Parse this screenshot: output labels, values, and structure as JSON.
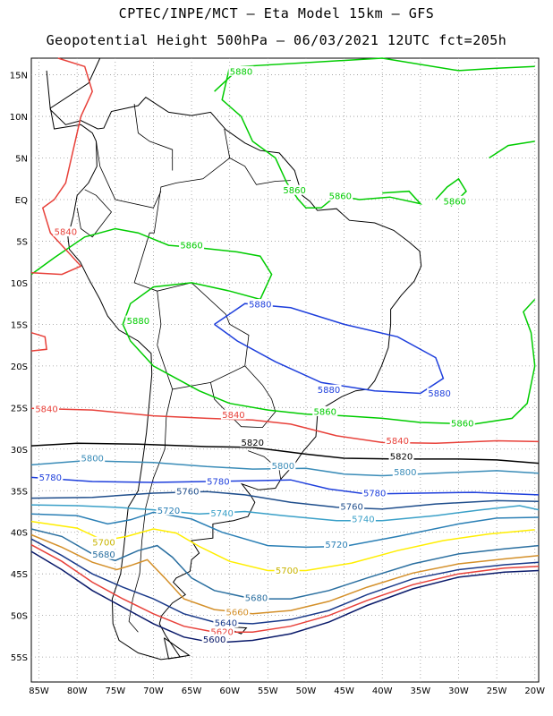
{
  "title_line1": "CPTEC/INPE/MCT —  Eta Model 15km — GFS",
  "title_line2": "Geopotential Height 500hPa — 06/03/2021 12UTC fct=205h",
  "map": {
    "lon_range": [
      -86,
      -19.5
    ],
    "lat_range": [
      -58,
      17
    ],
    "lat_labels": [
      "15N",
      "10N",
      "5N",
      "EQ",
      "5S",
      "10S",
      "15S",
      "20S",
      "25S",
      "30S",
      "35S",
      "40S",
      "45S",
      "50S",
      "55S"
    ],
    "lon_labels": [
      "85W",
      "80W",
      "75W",
      "70W",
      "65W",
      "60W",
      "55W",
      "50W",
      "45W",
      "40W",
      "35W",
      "30W",
      "25W",
      "20W"
    ],
    "coast_color": "#000000",
    "grid_color": "#9a9a9a"
  },
  "contours": [
    {
      "level": "5880",
      "color": "#00cc00"
    },
    {
      "level": "5880",
      "color": "#1e3fdc"
    },
    {
      "level": "5860",
      "color": "#00cc00"
    },
    {
      "level": "5840",
      "color": "#e8413a"
    },
    {
      "level": "5820",
      "color": "#000000"
    },
    {
      "level": "5800",
      "color": "#3a8cb8"
    },
    {
      "level": "5780",
      "color": "#1e3fdc"
    },
    {
      "level": "5760",
      "color": "#1f4e8c"
    },
    {
      "level": "5740",
      "color": "#3aa0c8"
    },
    {
      "level": "5720",
      "color": "#2a7fb5"
    },
    {
      "level": "5700",
      "color": "#ffee00"
    },
    {
      "level": "5680",
      "color": "#2a6fa0"
    },
    {
      "level": "5660",
      "color": "#d4902a"
    },
    {
      "level": "5640",
      "color": "#1a3a8a"
    },
    {
      "level": "5620",
      "color": "#e8413a"
    },
    {
      "level": "5600",
      "color": "#0a1a6a"
    }
  ],
  "labels": [
    {
      "text": "5880",
      "color": "#00cc00",
      "lon": -58.5,
      "lat": 15.3
    },
    {
      "text": "5860",
      "color": "#00cc00",
      "lon": -51.5,
      "lat": 1.0
    },
    {
      "text": "5860",
      "color": "#00cc00",
      "lon": -45.5,
      "lat": 0.3
    },
    {
      "text": "5860",
      "color": "#00cc00",
      "lon": -30.5,
      "lat": -0.3
    },
    {
      "text": "5860",
      "color": "#00cc00",
      "lon": -65.0,
      "lat": -5.6
    },
    {
      "text": "5880",
      "color": "#00cc00",
      "lon": -72.0,
      "lat": -14.7
    },
    {
      "text": "5860",
      "color": "#00cc00",
      "lon": -47.5,
      "lat": -25.6
    },
    {
      "text": "5860",
      "color": "#00cc00",
      "lon": -29.5,
      "lat": -27.0
    },
    {
      "text": "5840",
      "color": "#e8413a",
      "lon": -81.5,
      "lat": -4.0
    },
    {
      "text": "5880",
      "color": "#1e3fdc",
      "lon": -56.0,
      "lat": -12.7
    },
    {
      "text": "5880",
      "color": "#1e3fdc",
      "lon": -47.0,
      "lat": -23.0
    },
    {
      "text": "5880",
      "color": "#1e3fdc",
      "lon": -32.5,
      "lat": -23.4
    },
    {
      "text": "5840",
      "color": "#e8413a",
      "lon": -84.0,
      "lat": -25.3
    },
    {
      "text": "5840",
      "color": "#e8413a",
      "lon": -59.5,
      "lat": -26.0
    },
    {
      "text": "5840",
      "color": "#e8413a",
      "lon": -38.0,
      "lat": -29.1
    },
    {
      "text": "5820",
      "color": "#000000",
      "lon": -57.0,
      "lat": -29.3
    },
    {
      "text": "5820",
      "color": "#000000",
      "lon": -37.5,
      "lat": -31.0
    },
    {
      "text": "5800",
      "color": "#3a8cb8",
      "lon": -78.0,
      "lat": -31.2
    },
    {
      "text": "5800",
      "color": "#3a8cb8",
      "lon": -53.0,
      "lat": -32.1
    },
    {
      "text": "5800",
      "color": "#3a8cb8",
      "lon": -37.0,
      "lat": -32.9
    },
    {
      "text": "5780",
      "color": "#1e3fdc",
      "lon": -83.5,
      "lat": -33.5
    },
    {
      "text": "5780",
      "color": "#1e3fdc",
      "lon": -61.5,
      "lat": -34.0
    },
    {
      "text": "5760",
      "color": "#1f4e8c",
      "lon": -65.5,
      "lat": -35.2
    },
    {
      "text": "5780",
      "color": "#1e3fdc",
      "lon": -41.0,
      "lat": -35.4
    },
    {
      "text": "5760",
      "color": "#1f4e8c",
      "lon": -44.0,
      "lat": -37.0
    },
    {
      "text": "5720",
      "color": "#2a7fb5",
      "lon": -68.0,
      "lat": -37.5
    },
    {
      "text": "5740",
      "color": "#3aa0c8",
      "lon": -61.0,
      "lat": -37.8
    },
    {
      "text": "5740",
      "color": "#3aa0c8",
      "lon": -42.5,
      "lat": -38.5
    },
    {
      "text": "5720",
      "color": "#2a7fb5",
      "lon": -46.0,
      "lat": -41.6
    },
    {
      "text": "5700",
      "color": "#c8b400",
      "lon": -76.5,
      "lat": -41.3
    },
    {
      "text": "5680",
      "color": "#2a6fa0",
      "lon": -76.5,
      "lat": -42.8
    },
    {
      "text": "5700",
      "color": "#c8b400",
      "lon": -52.5,
      "lat": -44.7
    },
    {
      "text": "5680",
      "color": "#2a6fa0",
      "lon": -56.5,
      "lat": -48.0
    },
    {
      "text": "5660",
      "color": "#d4902a",
      "lon": -59.0,
      "lat": -49.7
    },
    {
      "text": "5640",
      "color": "#1a3a8a",
      "lon": -60.5,
      "lat": -51.0
    },
    {
      "text": "5620",
      "color": "#e8413a",
      "lon": -61.0,
      "lat": -52.1
    },
    {
      "text": "5600",
      "color": "#0a1a6a",
      "lon": -62.0,
      "lat": -53.0
    }
  ]
}
